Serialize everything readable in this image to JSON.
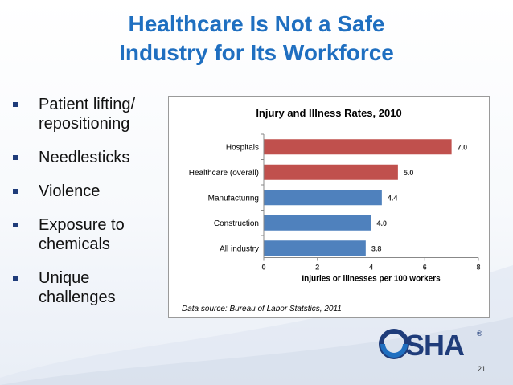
{
  "slide": {
    "title_line1": "Healthcare Is Not a Safe",
    "title_line2": "Industry for Its Workforce",
    "page_number": "21"
  },
  "bullets": [
    {
      "lines": [
        "Patient lifting/",
        "repositioning"
      ]
    },
    {
      "lines": [
        "Needlesticks"
      ]
    },
    {
      "lines": [
        "Violence"
      ]
    },
    {
      "lines": [
        "Exposure to",
        "chemicals"
      ]
    },
    {
      "lines": [
        "Unique",
        "challenges"
      ]
    }
  ],
  "logo": {
    "text": "OSHA",
    "mark": "®"
  },
  "colors": {
    "title": "#1f6fc0",
    "bar_red": "#c0504d",
    "bar_blue": "#4f81bd"
  },
  "chart_data": {
    "type": "bar",
    "orientation": "horizontal",
    "title": "Injury and Illness Rates, 2010",
    "categories": [
      "Hospitals",
      "Healthcare (overall)",
      "Manufacturing",
      "Construction",
      "All industry"
    ],
    "values": [
      7.0,
      5.0,
      4.4,
      4.0,
      3.8
    ],
    "value_labels": [
      "7.0",
      "5.0",
      "4.4",
      "4.0",
      "3.8"
    ],
    "bar_colors": [
      "#c0504d",
      "#c0504d",
      "#4f81bd",
      "#4f81bd",
      "#4f81bd"
    ],
    "xlabel": "Injuries or illnesses per 100 workers",
    "ylabel": "",
    "xlim": [
      0,
      8
    ],
    "xticks": [
      0,
      2,
      4,
      6,
      8
    ],
    "source": "Data source: Bureau of Labor Statstics, 2011",
    "grid": false
  }
}
